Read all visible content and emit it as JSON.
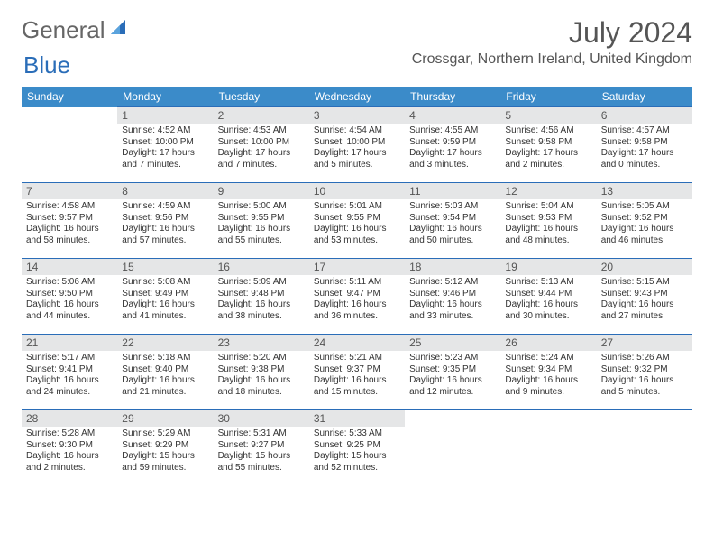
{
  "brand": {
    "part1": "General",
    "part2": "Blue"
  },
  "title": "July 2024",
  "location": "Crossgar, Northern Ireland, United Kingdom",
  "colors": {
    "header_bg": "#3b8bc9",
    "daynum_bg": "#e5e6e7",
    "row_border": "#2a6db8"
  },
  "weekdays": [
    "Sunday",
    "Monday",
    "Tuesday",
    "Wednesday",
    "Thursday",
    "Friday",
    "Saturday"
  ],
  "weeks": [
    [
      {
        "n": "",
        "sr": "",
        "ss": "",
        "dl": ""
      },
      {
        "n": "1",
        "sr": "Sunrise: 4:52 AM",
        "ss": "Sunset: 10:00 PM",
        "dl": "Daylight: 17 hours and 7 minutes."
      },
      {
        "n": "2",
        "sr": "Sunrise: 4:53 AM",
        "ss": "Sunset: 10:00 PM",
        "dl": "Daylight: 17 hours and 7 minutes."
      },
      {
        "n": "3",
        "sr": "Sunrise: 4:54 AM",
        "ss": "Sunset: 10:00 PM",
        "dl": "Daylight: 17 hours and 5 minutes."
      },
      {
        "n": "4",
        "sr": "Sunrise: 4:55 AM",
        "ss": "Sunset: 9:59 PM",
        "dl": "Daylight: 17 hours and 3 minutes."
      },
      {
        "n": "5",
        "sr": "Sunrise: 4:56 AM",
        "ss": "Sunset: 9:58 PM",
        "dl": "Daylight: 17 hours and 2 minutes."
      },
      {
        "n": "6",
        "sr": "Sunrise: 4:57 AM",
        "ss": "Sunset: 9:58 PM",
        "dl": "Daylight: 17 hours and 0 minutes."
      }
    ],
    [
      {
        "n": "7",
        "sr": "Sunrise: 4:58 AM",
        "ss": "Sunset: 9:57 PM",
        "dl": "Daylight: 16 hours and 58 minutes."
      },
      {
        "n": "8",
        "sr": "Sunrise: 4:59 AM",
        "ss": "Sunset: 9:56 PM",
        "dl": "Daylight: 16 hours and 57 minutes."
      },
      {
        "n": "9",
        "sr": "Sunrise: 5:00 AM",
        "ss": "Sunset: 9:55 PM",
        "dl": "Daylight: 16 hours and 55 minutes."
      },
      {
        "n": "10",
        "sr": "Sunrise: 5:01 AM",
        "ss": "Sunset: 9:55 PM",
        "dl": "Daylight: 16 hours and 53 minutes."
      },
      {
        "n": "11",
        "sr": "Sunrise: 5:03 AM",
        "ss": "Sunset: 9:54 PM",
        "dl": "Daylight: 16 hours and 50 minutes."
      },
      {
        "n": "12",
        "sr": "Sunrise: 5:04 AM",
        "ss": "Sunset: 9:53 PM",
        "dl": "Daylight: 16 hours and 48 minutes."
      },
      {
        "n": "13",
        "sr": "Sunrise: 5:05 AM",
        "ss": "Sunset: 9:52 PM",
        "dl": "Daylight: 16 hours and 46 minutes."
      }
    ],
    [
      {
        "n": "14",
        "sr": "Sunrise: 5:06 AM",
        "ss": "Sunset: 9:50 PM",
        "dl": "Daylight: 16 hours and 44 minutes."
      },
      {
        "n": "15",
        "sr": "Sunrise: 5:08 AM",
        "ss": "Sunset: 9:49 PM",
        "dl": "Daylight: 16 hours and 41 minutes."
      },
      {
        "n": "16",
        "sr": "Sunrise: 5:09 AM",
        "ss": "Sunset: 9:48 PM",
        "dl": "Daylight: 16 hours and 38 minutes."
      },
      {
        "n": "17",
        "sr": "Sunrise: 5:11 AM",
        "ss": "Sunset: 9:47 PM",
        "dl": "Daylight: 16 hours and 36 minutes."
      },
      {
        "n": "18",
        "sr": "Sunrise: 5:12 AM",
        "ss": "Sunset: 9:46 PM",
        "dl": "Daylight: 16 hours and 33 minutes."
      },
      {
        "n": "19",
        "sr": "Sunrise: 5:13 AM",
        "ss": "Sunset: 9:44 PM",
        "dl": "Daylight: 16 hours and 30 minutes."
      },
      {
        "n": "20",
        "sr": "Sunrise: 5:15 AM",
        "ss": "Sunset: 9:43 PM",
        "dl": "Daylight: 16 hours and 27 minutes."
      }
    ],
    [
      {
        "n": "21",
        "sr": "Sunrise: 5:17 AM",
        "ss": "Sunset: 9:41 PM",
        "dl": "Daylight: 16 hours and 24 minutes."
      },
      {
        "n": "22",
        "sr": "Sunrise: 5:18 AM",
        "ss": "Sunset: 9:40 PM",
        "dl": "Daylight: 16 hours and 21 minutes."
      },
      {
        "n": "23",
        "sr": "Sunrise: 5:20 AM",
        "ss": "Sunset: 9:38 PM",
        "dl": "Daylight: 16 hours and 18 minutes."
      },
      {
        "n": "24",
        "sr": "Sunrise: 5:21 AM",
        "ss": "Sunset: 9:37 PM",
        "dl": "Daylight: 16 hours and 15 minutes."
      },
      {
        "n": "25",
        "sr": "Sunrise: 5:23 AM",
        "ss": "Sunset: 9:35 PM",
        "dl": "Daylight: 16 hours and 12 minutes."
      },
      {
        "n": "26",
        "sr": "Sunrise: 5:24 AM",
        "ss": "Sunset: 9:34 PM",
        "dl": "Daylight: 16 hours and 9 minutes."
      },
      {
        "n": "27",
        "sr": "Sunrise: 5:26 AM",
        "ss": "Sunset: 9:32 PM",
        "dl": "Daylight: 16 hours and 5 minutes."
      }
    ],
    [
      {
        "n": "28",
        "sr": "Sunrise: 5:28 AM",
        "ss": "Sunset: 9:30 PM",
        "dl": "Daylight: 16 hours and 2 minutes."
      },
      {
        "n": "29",
        "sr": "Sunrise: 5:29 AM",
        "ss": "Sunset: 9:29 PM",
        "dl": "Daylight: 15 hours and 59 minutes."
      },
      {
        "n": "30",
        "sr": "Sunrise: 5:31 AM",
        "ss": "Sunset: 9:27 PM",
        "dl": "Daylight: 15 hours and 55 minutes."
      },
      {
        "n": "31",
        "sr": "Sunrise: 5:33 AM",
        "ss": "Sunset: 9:25 PM",
        "dl": "Daylight: 15 hours and 52 minutes."
      },
      {
        "n": "",
        "sr": "",
        "ss": "",
        "dl": ""
      },
      {
        "n": "",
        "sr": "",
        "ss": "",
        "dl": ""
      },
      {
        "n": "",
        "sr": "",
        "ss": "",
        "dl": ""
      }
    ]
  ]
}
